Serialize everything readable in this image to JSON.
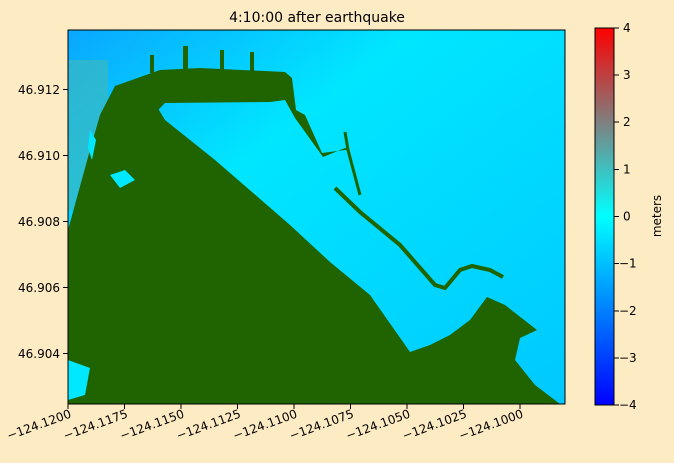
{
  "chart_data": {
    "type": "heatmap",
    "title": "4:10:00 after earthquake",
    "xlabel": "",
    "ylabel": "",
    "xlim": [
      -124.1205,
      -124.0975
    ],
    "ylim": [
      46.9029,
      46.9138
    ],
    "x_ticks": [
      -124.12,
      -124.1175,
      -124.115,
      -124.1125,
      -124.11,
      -124.1075,
      -124.105,
      -124.1025,
      -124.1
    ],
    "x_tick_labels": [
      "−124.1200",
      "−124.1175",
      "−124.1150",
      "−124.1125",
      "−124.1100",
      "−124.1075",
      "−124.1050",
      "−124.1025",
      "−124.1000"
    ],
    "y_ticks": [
      46.904,
      46.906,
      46.908,
      46.91,
      46.912
    ],
    "y_tick_labels": [
      "46.904",
      "46.906",
      "46.908",
      "46.910",
      "46.912"
    ],
    "colorbar": {
      "label": "meters",
      "range": [
        -4,
        4
      ],
      "ticks": [
        -4,
        -3,
        -2,
        -1,
        0,
        1,
        2,
        3,
        4
      ],
      "tick_labels": [
        "−4",
        "−3",
        "−2",
        "−1",
        "0",
        "1",
        "2",
        "3",
        "4"
      ],
      "colors": [
        "#0000ff",
        "#00ffff",
        "#ff0000"
      ]
    },
    "land_color": "#1f6400",
    "water_color": "#00d8ff",
    "grid": false
  }
}
